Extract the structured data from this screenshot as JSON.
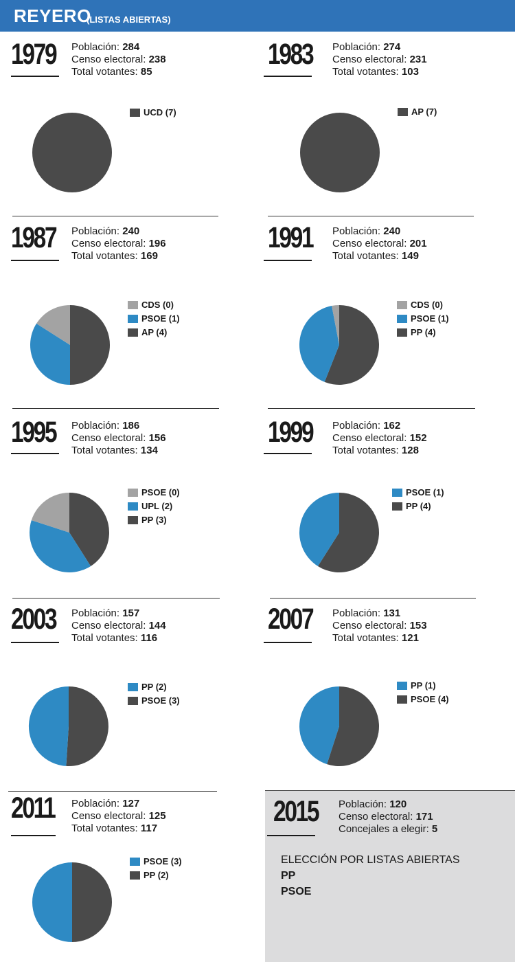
{
  "header": {
    "title": "REYERO",
    "subtitle": "(LISTAS ABIERTAS)"
  },
  "colors": {
    "dark": "#4a4a4a",
    "blue": "#2e8ac4",
    "gray": "#a3a3a3",
    "header": "#2f73b8",
    "panel": "#dcdcdd"
  },
  "labels": {
    "poblacion": "Población: ",
    "censo": "Censo electoral: ",
    "votantes": "Total votantes: ",
    "concejales": "Concejales a elegir: "
  },
  "chart_data": [
    {
      "type": "pie",
      "year": "1979",
      "poblacion": "284",
      "censo": "238",
      "votantes": "85",
      "legend": [
        {
          "label": "UCD (7)",
          "color": "dark"
        }
      ],
      "slices": [
        {
          "value": 1.0,
          "color": "dark"
        }
      ]
    },
    {
      "type": "pie",
      "year": "1983",
      "poblacion": "274",
      "censo": "231",
      "votantes": "103",
      "legend": [
        {
          "label": "AP (7)",
          "color": "dark"
        }
      ],
      "slices": [
        {
          "value": 1.0,
          "color": "dark"
        }
      ]
    },
    {
      "type": "pie",
      "year": "1987",
      "poblacion": "240",
      "censo": "196",
      "votantes": "169",
      "legend": [
        {
          "label": "CDS (0)",
          "color": "gray"
        },
        {
          "label": "PSOE (1)",
          "color": "blue"
        },
        {
          "label": "AP (4)",
          "color": "dark"
        }
      ],
      "slices": [
        {
          "value": 0.5,
          "color": "dark"
        },
        {
          "value": 0.34,
          "color": "blue"
        },
        {
          "value": 0.16,
          "color": "gray"
        }
      ]
    },
    {
      "type": "pie",
      "year": "1991",
      "poblacion": "240",
      "censo": "201",
      "votantes": "149",
      "legend": [
        {
          "label": "CDS (0)",
          "color": "gray"
        },
        {
          "label": "PSOE (1)",
          "color": "blue"
        },
        {
          "label": "PP (4)",
          "color": "dark"
        }
      ],
      "slices": [
        {
          "value": 0.56,
          "color": "dark"
        },
        {
          "value": 0.41,
          "color": "blue"
        },
        {
          "value": 0.03,
          "color": "gray"
        }
      ]
    },
    {
      "type": "pie",
      "year": "1995",
      "poblacion": "186",
      "censo": "156",
      "votantes": "134",
      "legend": [
        {
          "label": "PSOE (0)",
          "color": "gray"
        },
        {
          "label": "UPL (2)",
          "color": "blue"
        },
        {
          "label": "PP (3)",
          "color": "dark"
        }
      ],
      "slices": [
        {
          "value": 0.41,
          "color": "dark"
        },
        {
          "value": 0.39,
          "color": "blue"
        },
        {
          "value": 0.2,
          "color": "gray"
        }
      ]
    },
    {
      "type": "pie",
      "year": "1999",
      "poblacion": "162",
      "censo": "152",
      "votantes": "128",
      "legend": [
        {
          "label": "PSOE (1)",
          "color": "blue"
        },
        {
          "label": "PP (4)",
          "color": "dark"
        }
      ],
      "slices": [
        {
          "value": 0.59,
          "color": "dark"
        },
        {
          "value": 0.41,
          "color": "blue"
        }
      ]
    },
    {
      "type": "pie",
      "year": "2003",
      "poblacion": "157",
      "censo": "144",
      "votantes": "116",
      "legend": [
        {
          "label": "PP (2)",
          "color": "blue"
        },
        {
          "label": "PSOE (3)",
          "color": "dark"
        }
      ],
      "slices": [
        {
          "value": 0.51,
          "color": "dark"
        },
        {
          "value": 0.49,
          "color": "blue"
        }
      ]
    },
    {
      "type": "pie",
      "year": "2007",
      "poblacion": "131",
      "censo": "153",
      "votantes": "121",
      "legend": [
        {
          "label": "PP (1)",
          "color": "blue"
        },
        {
          "label": "PSOE (4)",
          "color": "dark"
        }
      ],
      "slices": [
        {
          "value": 0.55,
          "color": "dark"
        },
        {
          "value": 0.45,
          "color": "blue"
        }
      ]
    },
    {
      "type": "pie",
      "year": "2011",
      "poblacion": "127",
      "censo": "125",
      "votantes": "117",
      "legend": [
        {
          "label": "PSOE (3)",
          "color": "blue"
        },
        {
          "label": "PP (2)",
          "color": "dark"
        }
      ],
      "slices": [
        {
          "value": 0.5,
          "color": "dark"
        },
        {
          "value": 0.5,
          "color": "blue"
        }
      ]
    }
  ],
  "election_2015": {
    "year": "2015",
    "poblacion": "120",
    "censo": "171",
    "concejales": "5",
    "heading": "ELECCIÓN POR LISTAS ABIERTAS",
    "parties": [
      "PP",
      "PSOE"
    ]
  }
}
